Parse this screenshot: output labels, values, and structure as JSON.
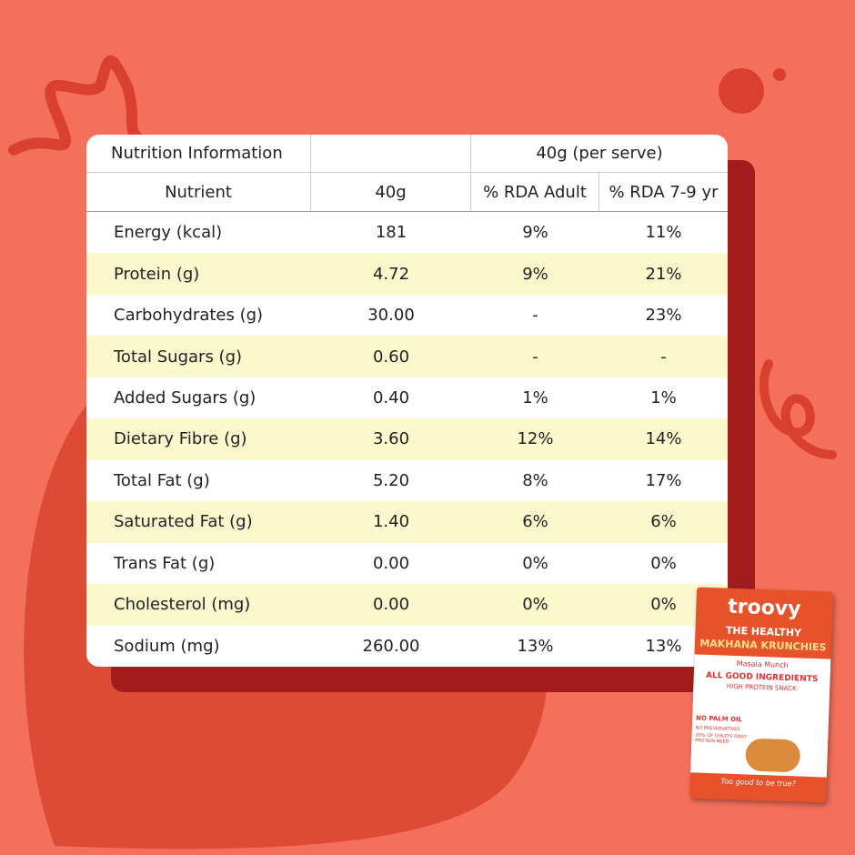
{
  "table": {
    "title": "Nutrition Information",
    "serving": "40g (per serve)",
    "columns": [
      "Nutrient",
      "40g",
      "% RDA Adult",
      "% RDA 7-9 yr"
    ],
    "rows": [
      [
        "Energy (kcal)",
        "181",
        "9%",
        "11%"
      ],
      [
        "Protein (g)",
        "4.72",
        "9%",
        "21%"
      ],
      [
        "Carbohydrates (g)",
        "30.00",
        "-",
        "23%"
      ],
      [
        "Total Sugars (g)",
        "0.60",
        "-",
        "-"
      ],
      [
        "Added Sugars (g)",
        "0.40",
        "1%",
        "1%"
      ],
      [
        "Dietary Fibre (g)",
        "3.60",
        "12%",
        "14%"
      ],
      [
        "Total Fat (g)",
        "5.20",
        "8%",
        "17%"
      ],
      [
        "Saturated Fat (g)",
        "1.40",
        "6%",
        "6%"
      ],
      [
        "Trans Fat (g)",
        "0.00",
        "0%",
        "0%"
      ],
      [
        "Cholesterol (mg)",
        "0.00",
        "0%",
        "0%"
      ],
      [
        "Sodium (mg)",
        "260.00",
        "13%",
        "13%"
      ]
    ]
  },
  "packet": {
    "brand": "troovy",
    "tagline": "THE HEALTHY",
    "product": "MAKHANA KRUNCHIES",
    "flavour": "Masala Munch",
    "claim": "ALL GOOD INGREDIENTS",
    "subclaim": "HIGH PROTEIN SNACK",
    "badge1": "NO PALM OIL",
    "badge2": "NO PRESERVATIVES",
    "badge3": "20% OF CHILD'S DAILY PROTEIN NEED",
    "footer": "Too good to be true?"
  }
}
